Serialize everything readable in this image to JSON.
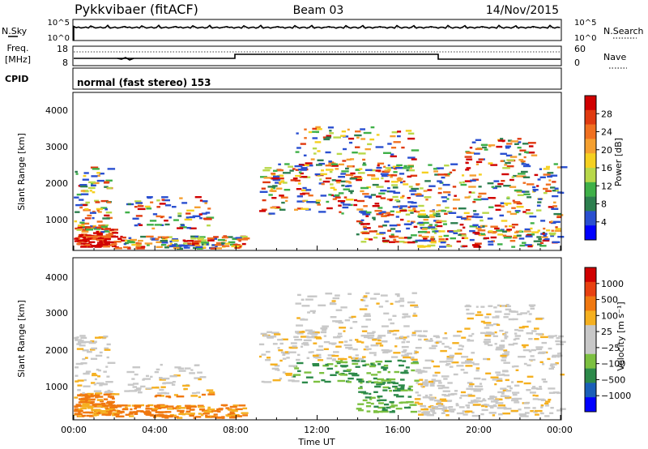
{
  "header": {
    "station": "Pykkvibaer (fitACF)",
    "beam": "Beam 03",
    "date": "14/Nov/2015"
  },
  "noise_panel": {
    "left_label": "N.Sky",
    "right_label": "N.Search",
    "y_ticks": [
      "10^5",
      "10^0"
    ],
    "right_ticks": [
      "10^5",
      "10^0"
    ]
  },
  "freq_panel": {
    "left_label_line1": "Freq.",
    "left_label_line2": "[MHz]",
    "left_ticks": [
      "18",
      "8"
    ],
    "right_ticks": [
      "60",
      "0"
    ],
    "right_label": "Nave"
  },
  "cpid_panel": {
    "label": "CPID",
    "text": "normal (fast stereo) 153"
  },
  "chart_data": [
    {
      "type": "heatmap",
      "name": "power",
      "ylabel": "Slant Range [km]",
      "y_ticks": [
        "4000",
        "3000",
        "2000",
        "1000"
      ],
      "ylim": [
        200,
        4500
      ],
      "colorbar_label": "Power [dB]",
      "colorbar_ticks": [
        "28",
        "24",
        "20",
        "16",
        "12",
        "8",
        "4"
      ],
      "colors": [
        "#0000ff",
        "#2a4fd0",
        "#2d7f4f",
        "#3fb048",
        "#b8d84a",
        "#f5d020",
        "#f5a030",
        "#f07020",
        "#e03a10",
        "#d00000"
      ]
    },
    {
      "type": "heatmap",
      "name": "velocity",
      "ylabel": "Slant Range [km]",
      "y_ticks": [
        "4000",
        "3000",
        "2000",
        "1000"
      ],
      "ylim": [
        200,
        4500
      ],
      "colorbar_label": "Velocity [m s⁻¹]",
      "colorbar_ticks": [
        "1000",
        "500",
        "100",
        "25",
        "−25",
        "−100",
        "−500",
        "−1000"
      ],
      "colors": [
        "#0000ff",
        "#1a5fb8",
        "#2d8a4a",
        "#7cc040",
        "#c8c8c8",
        "#c8c8c8",
        "#f5b020",
        "#f07810",
        "#e84010",
        "#d00000"
      ],
      "xlabel": "Time UT",
      "x_ticks": [
        "00:00",
        "04:00",
        "08:00",
        "12:00",
        "16:00",
        "20:00",
        "00:00"
      ]
    }
  ]
}
